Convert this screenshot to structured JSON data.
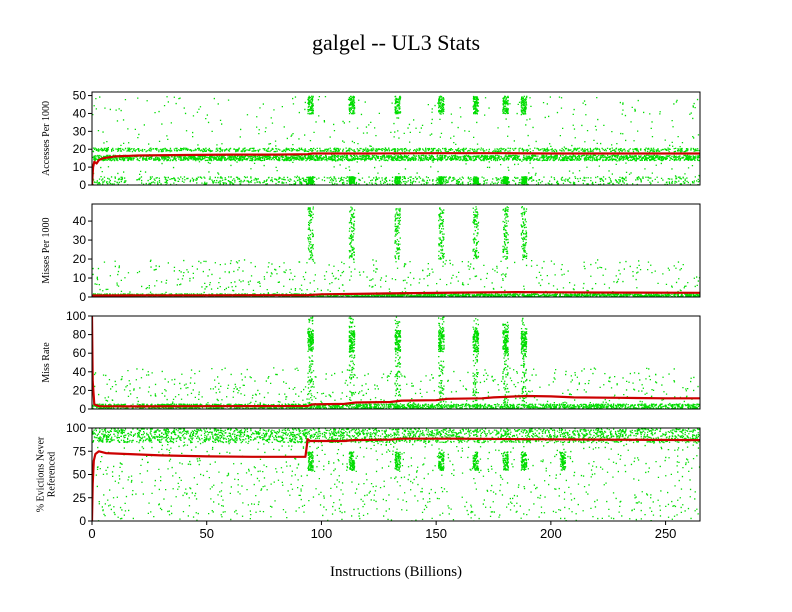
{
  "chart_data": {
    "type": "scatter",
    "title": "galgel -- UL3  Stats",
    "xlabel": "Instructions (Billions)",
    "xlim": [
      0,
      265
    ],
    "x_ticks": [
      "0",
      "50",
      "100",
      "150",
      "200",
      "250"
    ],
    "x_tick_values": [
      0,
      50,
      100,
      150,
      200,
      250
    ],
    "colors": {
      "points": "#00dd00",
      "cumulative": "#cc0000",
      "frame": "#000000"
    },
    "panels": [
      {
        "ylabel": [
          "Accesses Per 1000"
        ],
        "ylim": [
          0,
          52
        ],
        "y_ticks": [
          "0",
          "10",
          "20",
          "30",
          "40",
          "50"
        ],
        "y_tick_values": [
          0,
          10,
          20,
          30,
          40,
          50
        ],
        "series": [
          {
            "type": "scatter",
            "color": "#00dd00",
            "bands": [
              {
                "x": [
                  0,
                  265
                ],
                "y": [
                  14,
                  17
                ],
                "density": "dense"
              },
              {
                "x": [
                  0,
                  265
                ],
                "y": [
                  19,
                  21
                ],
                "density": "medium"
              },
              {
                "x": [
                  0,
                  265
                ],
                "y": [
                  0,
                  5
                ],
                "density": "medium"
              },
              {
                "x": [
                  0,
                  265
                ],
                "y": [
                  0,
                  50
                ],
                "density": "sparse"
              }
            ],
            "bursts_x": [
              95,
              113,
              133,
              152,
              167,
              180,
              188
            ],
            "burst_y": [
              [
                40,
                50
              ],
              [
                1,
                5
              ]
            ]
          },
          {
            "type": "line",
            "color": "#cc0000",
            "points": [
              [
                0,
                0
              ],
              [
                0.5,
                10
              ],
              [
                1,
                13
              ],
              [
                2,
                12
              ],
              [
                3,
                14
              ],
              [
                5,
                15
              ],
              [
                10,
                16
              ],
              [
                20,
                16.5
              ],
              [
                40,
                16.8
              ],
              [
                60,
                17
              ],
              [
                80,
                17
              ],
              [
                94,
                17.2
              ],
              [
                96,
                17.6
              ],
              [
                120,
                17.6
              ],
              [
                150,
                17.8
              ],
              [
                180,
                17.8
              ],
              [
                200,
                17.6
              ],
              [
                230,
                17.6
              ],
              [
                265,
                17.6
              ]
            ]
          }
        ]
      },
      {
        "ylabel": [
          "Misses Per 1000"
        ],
        "ylim": [
          0,
          49
        ],
        "y_ticks": [
          "0",
          "10",
          "20",
          "30",
          "40"
        ],
        "y_tick_values": [
          0,
          10,
          20,
          30,
          40
        ],
        "series": [
          {
            "type": "scatter",
            "color": "#00dd00",
            "bands": [
              {
                "x": [
                  0,
                  265
                ],
                "y": [
                  0,
                  2
                ],
                "density": "dense"
              },
              {
                "x": [
                  0,
                  265
                ],
                "y": [
                  0,
                  20
                ],
                "density": "sparse"
              }
            ],
            "bursts_x": [
              95,
              113,
              133,
              152,
              167,
              180,
              188
            ],
            "burst_y": [
              [
                20,
                48
              ]
            ]
          },
          {
            "type": "line",
            "color": "#cc0000",
            "points": [
              [
                0,
                0.8
              ],
              [
                20,
                0.9
              ],
              [
                50,
                0.9
              ],
              [
                94,
                1
              ],
              [
                100,
                1.4
              ],
              [
                130,
                1.9
              ],
              [
                160,
                2.3
              ],
              [
                185,
                2.6
              ],
              [
                200,
                2.5
              ],
              [
                230,
                2.3
              ],
              [
                265,
                2.2
              ]
            ]
          }
        ]
      },
      {
        "ylabel": [
          "Miss Rate"
        ],
        "ylim": [
          0,
          100
        ],
        "y_ticks": [
          "0",
          "20",
          "40",
          "60",
          "80",
          "100"
        ],
        "y_tick_values": [
          0,
          20,
          40,
          60,
          80,
          100
        ],
        "series": [
          {
            "type": "scatter",
            "color": "#00dd00",
            "bands": [
              {
                "x": [
                  0,
                  265
                ],
                "y": [
                  0,
                  6
                ],
                "density": "dense"
              },
              {
                "x": [
                  0,
                  265
                ],
                "y": [
                  5,
                  45
                ],
                "density": "sparse"
              }
            ],
            "bursts_x": [
              95,
              113,
              133,
              152,
              167,
              180,
              188
            ],
            "burst_y": [
              [
                62,
                85
              ],
              [
                0,
                100
              ]
            ]
          },
          {
            "type": "line",
            "color": "#cc0000",
            "points": [
              [
                0,
                100
              ],
              [
                0.3,
                30
              ],
              [
                1,
                5
              ],
              [
                3,
                3
              ],
              [
                20,
                2.8
              ],
              [
                50,
                3
              ],
              [
                94,
                3.2
              ],
              [
                96,
                5
              ],
              [
                110,
                5.5
              ],
              [
                115,
                7
              ],
              [
                130,
                7.5
              ],
              [
                135,
                9
              ],
              [
                150,
                9.5
              ],
              [
                155,
                11
              ],
              [
                170,
                11.5
              ],
              [
                175,
                12.5
              ],
              [
                185,
                13.5
              ],
              [
                190,
                14
              ],
              [
                200,
                13.5
              ],
              [
                210,
                12.5
              ],
              [
                230,
                12
              ],
              [
                250,
                11.5
              ],
              [
                265,
                11.5
              ]
            ]
          }
        ]
      },
      {
        "ylabel": [
          "% Evictions Never",
          "Referenced"
        ],
        "ylim": [
          0,
          100
        ],
        "y_ticks": [
          "0",
          "25",
          "50",
          "75",
          "100"
        ],
        "y_tick_values": [
          0,
          25,
          50,
          75,
          100
        ],
        "series": [
          {
            "type": "scatter",
            "color": "#00dd00",
            "bands": [
              {
                "x": [
                  0,
                  265
                ],
                "y": [
                  85,
                  100
                ],
                "density": "dense"
              },
              {
                "x": [
                  0,
                  265
                ],
                "y": [
                  0,
                  85
                ],
                "density": "medium"
              }
            ],
            "bursts_x": [
              95,
              113,
              133,
              152,
              167,
              180,
              188,
              205
            ],
            "burst_y": [
              [
                55,
                75
              ]
            ]
          },
          {
            "type": "line",
            "color": "#cc0000",
            "points": [
              [
                0,
                0
              ],
              [
                0.3,
                40
              ],
              [
                0.8,
                65
              ],
              [
                1.5,
                72
              ],
              [
                3,
                75
              ],
              [
                6,
                73
              ],
              [
                15,
                72
              ],
              [
                30,
                70.5
              ],
              [
                50,
                69.5
              ],
              [
                70,
                69
              ],
              [
                93,
                69
              ],
              [
                94,
                88
              ],
              [
                95,
                86
              ],
              [
                110,
                86
              ],
              [
                114,
                87
              ],
              [
                130,
                87.5
              ],
              [
                135,
                88.5
              ],
              [
                160,
                88.5
              ],
              [
                190,
                88
              ],
              [
                220,
                87.5
              ],
              [
                265,
                87
              ]
            ]
          }
        ]
      }
    ]
  }
}
